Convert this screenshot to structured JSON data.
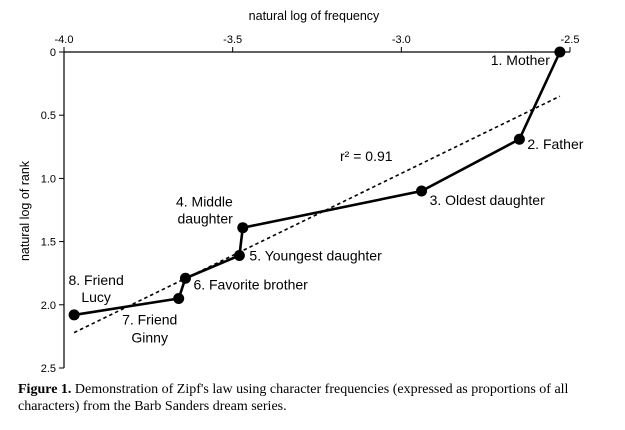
{
  "chart_data": {
    "type": "line",
    "xlabel": "natural log of frequency",
    "ylabel": "natural log of rank",
    "x_axis_position": "top",
    "y_axis_inverted": true,
    "xlim": [
      -4.0,
      -2.5
    ],
    "ylim": [
      0,
      2.5
    ],
    "x_ticks": [
      "-4.0",
      "-3.5",
      "-3.0",
      "-2.5"
    ],
    "y_ticks": [
      "0",
      "0.5",
      "1.0",
      "1.5",
      "2.0",
      "2.5"
    ],
    "grid": false,
    "series": [
      {
        "points": [
          {
            "x": -2.53,
            "y": 0.0,
            "label": "1. Mother"
          },
          {
            "x": -2.65,
            "y": 0.69,
            "label": "2. Father"
          },
          {
            "x": -2.94,
            "y": 1.1,
            "label": "3. Oldest daughter"
          },
          {
            "x": -3.47,
            "y": 1.39,
            "label": "4. Middle daughter"
          },
          {
            "x": -3.48,
            "y": 1.61,
            "label": "5. Youngest daughter"
          },
          {
            "x": -3.64,
            "y": 1.79,
            "label": "6. Favorite brother"
          },
          {
            "x": -3.66,
            "y": 1.95,
            "label": "7. Friend Ginny"
          },
          {
            "x": -3.97,
            "y": 2.08,
            "label": "8. Friend Lucy"
          }
        ]
      }
    ],
    "trendline": {
      "style": "dashed",
      "x": [
        -3.97,
        -2.53
      ],
      "y": [
        2.22,
        0.35
      ],
      "annotation": "r² = 0.91"
    }
  },
  "caption": {
    "label": "Figure 1.",
    "text": " Demonstration of Zipf's law using character frequencies (expressed as proportions of all characters) from the Barb Sanders dream series."
  }
}
